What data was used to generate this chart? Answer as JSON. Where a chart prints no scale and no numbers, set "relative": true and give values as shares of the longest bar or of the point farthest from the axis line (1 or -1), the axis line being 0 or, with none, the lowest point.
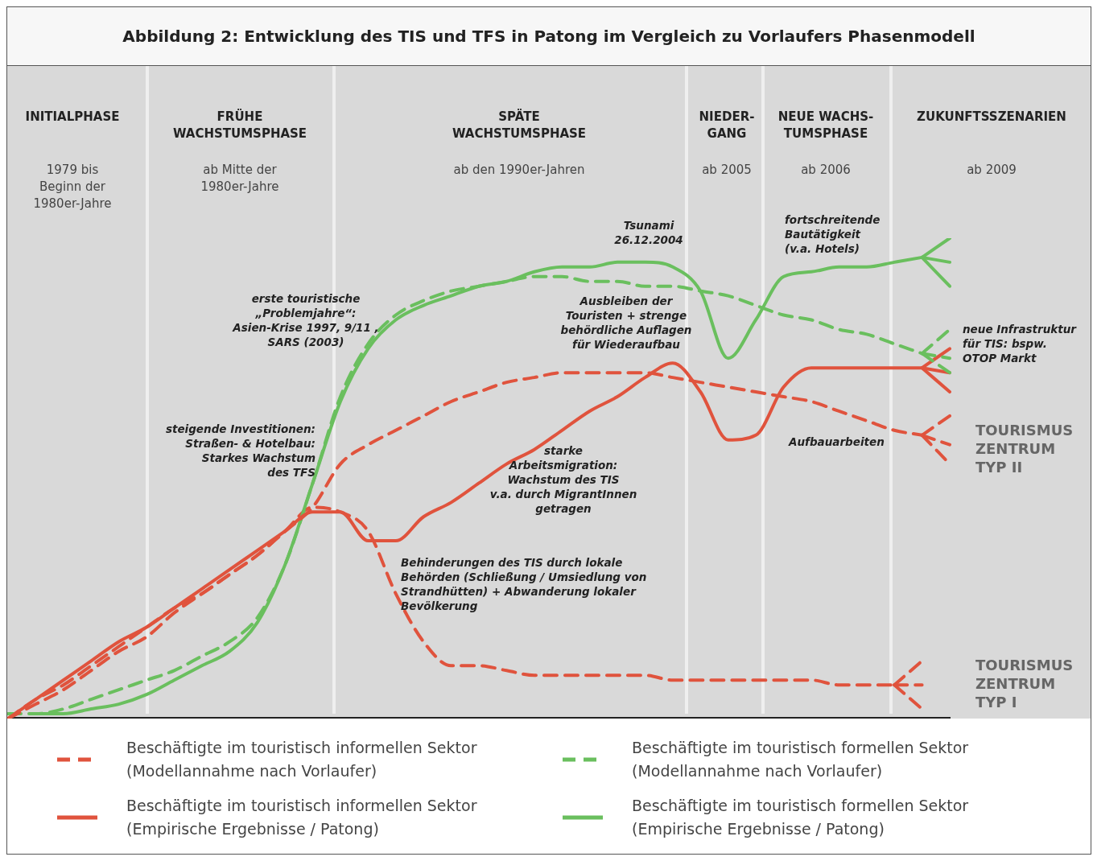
{
  "chart_data": {
    "type": "line",
    "title": "Abbildung 2: Entwicklung des TIS und TFS in Patong im Vergleich zu Vorlaufers Phasenmodell",
    "relative": true,
    "tick_labels": false,
    "grid": false,
    "marker": "none",
    "legend": "bottom",
    "categories": [
      null,
      null,
      null,
      null,
      null,
      null,
      null,
      null,
      null,
      null,
      null,
      null,
      null,
      null,
      null,
      null,
      null,
      null,
      null,
      null,
      null,
      null,
      null,
      null,
      null,
      null,
      null,
      null,
      null,
      null,
      null,
      null,
      null,
      null,
      null
    ],
    "series": [
      {
        "name": "Beschäftigte im touristisch informellen Sektor (Modellannahme nach Vorlaufer)",
        "color": "#e0533d",
        "line_style": "dashed",
        "values": [
          0,
          0.03,
          0.06,
          0.1,
          0.14,
          0.17,
          0.22,
          0.26,
          0.3,
          0.34,
          0.39,
          0.44,
          0.53,
          0.57,
          0.6,
          0.63,
          0.66,
          0.68,
          0.7,
          0.71,
          0.72,
          0.72,
          0.72,
          0.72,
          0.71,
          0.7,
          0.69,
          0.68,
          0.67,
          0.66,
          0.64,
          0.62,
          0.6,
          0.59,
          null
        ]
      },
      {
        "name": "Beschäftigte im touristisch informellen Sektor (Empirische Ergebnisse / Patong)",
        "color": "#e0533d",
        "line_style": "solid",
        "values": [
          0,
          0.04,
          0.08,
          0.12,
          0.16,
          0.19,
          0.23,
          0.27,
          0.31,
          0.35,
          0.39,
          0.43,
          0.43,
          0.37,
          0.37,
          0.42,
          0.45,
          0.49,
          0.53,
          0.56,
          0.6,
          0.64,
          0.67,
          0.71,
          0.74,
          0.68,
          0.58,
          0.59,
          0.69,
          0.73,
          0.73,
          0.73,
          0.73,
          0.73,
          null
        ]
      },
      {
        "name": "Beschäftigte im touristisch formellen Sektor (Modellannahme nach Vorlaufer)",
        "color": "#6abf5e",
        "line_style": "dashed",
        "values": [
          0.01,
          0.01,
          0.02,
          0.04,
          0.06,
          0.08,
          0.1,
          0.13,
          0.16,
          0.21,
          0.32,
          0.49,
          0.67,
          0.78,
          0.84,
          0.87,
          0.89,
          0.9,
          0.91,
          0.92,
          0.92,
          0.91,
          0.91,
          0.9,
          0.9,
          0.89,
          0.88,
          0.86,
          0.84,
          0.83,
          0.81,
          0.8,
          0.78,
          0.76,
          null
        ]
      },
      {
        "name": "Beschäftigte im touristisch formellen Sektor (Empirische Ergebnisse / Patong)",
        "color": "#6abf5e",
        "line_style": "solid",
        "values": [
          null,
          0.01,
          0.01,
          0.02,
          0.03,
          0.05,
          0.08,
          0.11,
          0.14,
          0.2,
          0.32,
          0.49,
          0.66,
          0.77,
          0.83,
          0.86,
          0.88,
          0.9,
          0.91,
          0.93,
          0.94,
          0.94,
          0.95,
          0.95,
          0.94,
          0.89,
          0.75,
          0.83,
          0.92,
          0.93,
          0.94,
          0.94,
          0.95,
          0.96,
          null
        ]
      },
      {
        "color": "#e0533d",
        "line_style": "dashed",
        "values": [
          0,
          0.04,
          0.07,
          0.11,
          0.15,
          0.19,
          0.23,
          0.26,
          0.3,
          0.34,
          0.39,
          0.44,
          0.43,
          0.39,
          0.26,
          0.16,
          0.11,
          0.11,
          0.1,
          0.09,
          0.09,
          0.09,
          0.09,
          0.09,
          0.08,
          0.08,
          0.08,
          0.08,
          0.08,
          0.08,
          0.07,
          0.07,
          0.07,
          null,
          null
        ]
      },
      {
        "color": "#6abf5e",
        "line_style": "solid",
        "values": [
          null,
          null,
          null,
          null,
          null,
          null,
          null,
          null,
          null,
          null,
          null,
          null,
          null,
          null,
          null,
          null,
          null,
          null,
          null,
          null,
          null,
          null,
          null,
          null,
          null,
          null,
          null,
          null,
          null,
          null,
          null,
          null,
          null,
          0.96,
          1
        ]
      },
      {
        "color": "#6abf5e",
        "line_style": "solid",
        "values": [
          null,
          null,
          null,
          null,
          null,
          null,
          null,
          null,
          null,
          null,
          null,
          null,
          null,
          null,
          null,
          null,
          null,
          null,
          null,
          null,
          null,
          null,
          null,
          null,
          null,
          null,
          null,
          null,
          null,
          null,
          null,
          null,
          null,
          0.96,
          0.95
        ]
      },
      {
        "color": "#6abf5e",
        "line_style": "solid",
        "values": [
          null,
          null,
          null,
          null,
          null,
          null,
          null,
          null,
          null,
          null,
          null,
          null,
          null,
          null,
          null,
          null,
          null,
          null,
          null,
          null,
          null,
          null,
          null,
          null,
          null,
          null,
          null,
          null,
          null,
          null,
          null,
          null,
          null,
          0.96,
          0.9
        ]
      },
      {
        "color": "#6abf5e",
        "line_style": "dashed",
        "values": [
          null,
          null,
          null,
          null,
          null,
          null,
          null,
          null,
          null,
          null,
          null,
          null,
          null,
          null,
          null,
          null,
          null,
          null,
          null,
          null,
          null,
          null,
          null,
          null,
          null,
          null,
          null,
          null,
          null,
          null,
          null,
          null,
          null,
          0.76,
          0.81
        ]
      },
      {
        "color": "#6abf5e",
        "line_style": "dashed",
        "values": [
          null,
          null,
          null,
          null,
          null,
          null,
          null,
          null,
          null,
          null,
          null,
          null,
          null,
          null,
          null,
          null,
          null,
          null,
          null,
          null,
          null,
          null,
          null,
          null,
          null,
          null,
          null,
          null,
          null,
          null,
          null,
          null,
          null,
          0.76,
          0.75
        ]
      },
      {
        "color": "#6abf5e",
        "line_style": "dashed",
        "values": [
          null,
          null,
          null,
          null,
          null,
          null,
          null,
          null,
          null,
          null,
          null,
          null,
          null,
          null,
          null,
          null,
          null,
          null,
          null,
          null,
          null,
          null,
          null,
          null,
          null,
          null,
          null,
          null,
          null,
          null,
          null,
          null,
          null,
          0.76,
          0.72
        ]
      },
      {
        "color": "#e0533d",
        "line_style": "solid",
        "values": [
          null,
          null,
          null,
          null,
          null,
          null,
          null,
          null,
          null,
          null,
          null,
          null,
          null,
          null,
          null,
          null,
          null,
          null,
          null,
          null,
          null,
          null,
          null,
          null,
          null,
          null,
          null,
          null,
          null,
          null,
          null,
          null,
          null,
          0.73,
          0.77
        ]
      },
      {
        "color": "#e0533d",
        "line_style": "solid",
        "values": [
          null,
          null,
          null,
          null,
          null,
          null,
          null,
          null,
          null,
          null,
          null,
          null,
          null,
          null,
          null,
          null,
          null,
          null,
          null,
          null,
          null,
          null,
          null,
          null,
          null,
          null,
          null,
          null,
          null,
          null,
          null,
          null,
          null,
          0.73,
          0.72
        ]
      },
      {
        "color": "#e0533d",
        "line_style": "solid",
        "values": [
          null,
          null,
          null,
          null,
          null,
          null,
          null,
          null,
          null,
          null,
          null,
          null,
          null,
          null,
          null,
          null,
          null,
          null,
          null,
          null,
          null,
          null,
          null,
          null,
          null,
          null,
          null,
          null,
          null,
          null,
          null,
          null,
          null,
          0.73,
          0.68
        ]
      },
      {
        "color": "#e0533d",
        "line_style": "dashed",
        "values": [
          null,
          null,
          null,
          null,
          null,
          null,
          null,
          null,
          null,
          null,
          null,
          null,
          null,
          null,
          null,
          null,
          null,
          null,
          null,
          null,
          null,
          null,
          null,
          null,
          null,
          null,
          null,
          null,
          null,
          null,
          null,
          null,
          null,
          0.59,
          0.63
        ]
      },
      {
        "color": "#e0533d",
        "line_style": "dashed",
        "values": [
          null,
          null,
          null,
          null,
          null,
          null,
          null,
          null,
          null,
          null,
          null,
          null,
          null,
          null,
          null,
          null,
          null,
          null,
          null,
          null,
          null,
          null,
          null,
          null,
          null,
          null,
          null,
          null,
          null,
          null,
          null,
          null,
          null,
          0.59,
          0.57
        ]
      },
      {
        "color": "#e0533d",
        "line_style": "dashed",
        "values": [
          null,
          null,
          null,
          null,
          null,
          null,
          null,
          null,
          null,
          null,
          null,
          null,
          null,
          null,
          null,
          null,
          null,
          null,
          null,
          null,
          null,
          null,
          null,
          null,
          null,
          null,
          null,
          null,
          null,
          null,
          null,
          null,
          null,
          0.59,
          0.53
        ]
      },
      {
        "color": "#e0533d",
        "line_style": "dashed",
        "values": [
          null,
          null,
          null,
          null,
          null,
          null,
          null,
          null,
          null,
          null,
          null,
          null,
          null,
          null,
          null,
          null,
          null,
          null,
          null,
          null,
          null,
          null,
          null,
          null,
          null,
          null,
          null,
          null,
          null,
          null,
          null,
          null,
          0.07,
          0.12,
          null
        ]
      },
      {
        "color": "#e0533d",
        "line_style": "dashed",
        "values": [
          null,
          null,
          null,
          null,
          null,
          null,
          null,
          null,
          null,
          null,
          null,
          null,
          null,
          null,
          null,
          null,
          null,
          null,
          null,
          null,
          null,
          null,
          null,
          null,
          null,
          null,
          null,
          null,
          null,
          null,
          null,
          null,
          0.07,
          0.07,
          null
        ]
      },
      {
        "color": "#e0533d",
        "line_style": "dashed",
        "values": [
          null,
          null,
          null,
          null,
          null,
          null,
          null,
          null,
          null,
          null,
          null,
          null,
          null,
          null,
          null,
          null,
          null,
          null,
          null,
          null,
          null,
          null,
          null,
          null,
          null,
          null,
          null,
          null,
          null,
          null,
          null,
          null,
          0.07,
          0.02,
          null
        ]
      }
    ],
    "annotations": [
      "INITIALPHASE",
      "FRÜHE\nWACHSTUMSPHASE",
      "SPÄTE\nWACHSTUMSPHASE",
      "NIEDER-\nGANG",
      "NEUE WACHS-\nTUMSPHASE",
      "ZUKUNFTSSZENARIEN",
      "1979 bis\nBeginn der\n1980er-Jahre",
      "ab Mitte der\n1980er-Jahre",
      "ab den 1990er-Jahren",
      "ab 2005",
      "ab 2006",
      "ab 2009",
      "Tsunami\n26.12.2004",
      "fortschreitende\nBautätigkeit\n(v.a. Hotels)",
      "erste touristische\n„Problemjahre“:\nAsien-Krise 1997, 9/11 ,\nSARS (2003)",
      "Ausbleiben der\nTouristen + strenge\nbehördliche Auflagen\nfür Wiederaufbau",
      "neue Infrastruktur\nfür TIS: bspw.\nOTOP Markt",
      "Aufbauarbeiten",
      "steigende Investitionen:\nStraßen- & Hotelbau:\nStarkes Wachstum\ndes TFS",
      "starke\nArbeitsmigration:\nWachstum des TIS\nv.a. durch MigrantInnen\ngetragen",
      "Behinderungen des TIS durch lokale\nBehörden (Schließung / Umsiedlung von\nStrandhütten) + Abwanderung lokaler\nBevölkerung",
      "TOURISMUS\nZENTRUM\nTYP II",
      "TOURISMUS\nZENTRUM\nTYP I"
    ]
  }
}
